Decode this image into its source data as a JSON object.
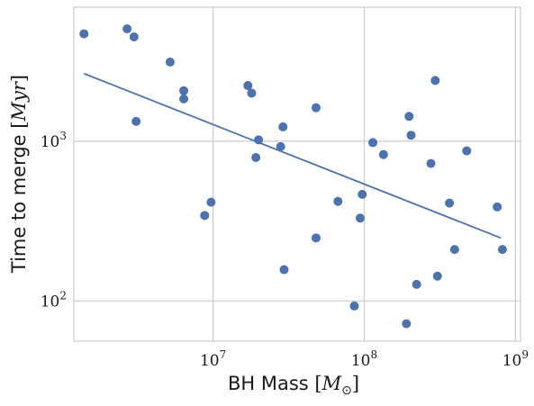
{
  "chart_data": {
    "type": "scatter",
    "xscale": "log",
    "yscale": "log",
    "xlim": [
      1200000,
      1080000000
    ],
    "ylim": [
      56,
      6900
    ],
    "grid": true,
    "xlabel_prefix": "BH Mass ",
    "xlabel_math": "M",
    "xlabel_sub": "⊙",
    "ylabel_prefix": "Time to merge ",
    "ylabel_math": "Myr",
    "xticks": [
      {
        "value": 10000000,
        "base": "10",
        "exp": "7"
      },
      {
        "value": 100000000,
        "base": "10",
        "exp": "8"
      },
      {
        "value": 1000000000,
        "base": "10",
        "exp": "9"
      }
    ],
    "yticks": [
      {
        "value": 100,
        "base": "10",
        "exp": "2"
      },
      {
        "value": 1000,
        "base": "10",
        "exp": "3"
      }
    ],
    "points_color": "#4c72b0",
    "line_color": "#4c72b0",
    "points": [
      {
        "x": 1400000,
        "y": 4700
      },
      {
        "x": 2700000,
        "y": 5050
      },
      {
        "x": 3000000,
        "y": 4500
      },
      {
        "x": 3100000,
        "y": 1330
      },
      {
        "x": 5200000,
        "y": 3130
      },
      {
        "x": 6400000,
        "y": 2070
      },
      {
        "x": 6400000,
        "y": 1840
      },
      {
        "x": 8800000,
        "y": 343
      },
      {
        "x": 9700000,
        "y": 415
      },
      {
        "x": 17000000,
        "y": 2230
      },
      {
        "x": 18000000,
        "y": 2000
      },
      {
        "x": 19200000,
        "y": 790
      },
      {
        "x": 20000000,
        "y": 1020
      },
      {
        "x": 28000000,
        "y": 925
      },
      {
        "x": 29000000,
        "y": 1230
      },
      {
        "x": 29500000,
        "y": 157
      },
      {
        "x": 48000000,
        "y": 1620
      },
      {
        "x": 48000000,
        "y": 248
      },
      {
        "x": 67000000,
        "y": 420
      },
      {
        "x": 86000000,
        "y": 93
      },
      {
        "x": 94000000,
        "y": 330
      },
      {
        "x": 97000000,
        "y": 465
      },
      {
        "x": 114000000,
        "y": 980
      },
      {
        "x": 134000000,
        "y": 825
      },
      {
        "x": 190000000,
        "y": 72
      },
      {
        "x": 198000000,
        "y": 1430
      },
      {
        "x": 204000000,
        "y": 1090
      },
      {
        "x": 222000000,
        "y": 127
      },
      {
        "x": 276000000,
        "y": 725
      },
      {
        "x": 295000000,
        "y": 2400
      },
      {
        "x": 305000000,
        "y": 143
      },
      {
        "x": 366000000,
        "y": 410
      },
      {
        "x": 396000000,
        "y": 210
      },
      {
        "x": 476000000,
        "y": 870
      },
      {
        "x": 758000000,
        "y": 388
      },
      {
        "x": 820000000,
        "y": 210
      }
    ],
    "fit_line": [
      {
        "x": 1400000,
        "y": 2650
      },
      {
        "x": 800000000,
        "y": 248
      }
    ]
  }
}
